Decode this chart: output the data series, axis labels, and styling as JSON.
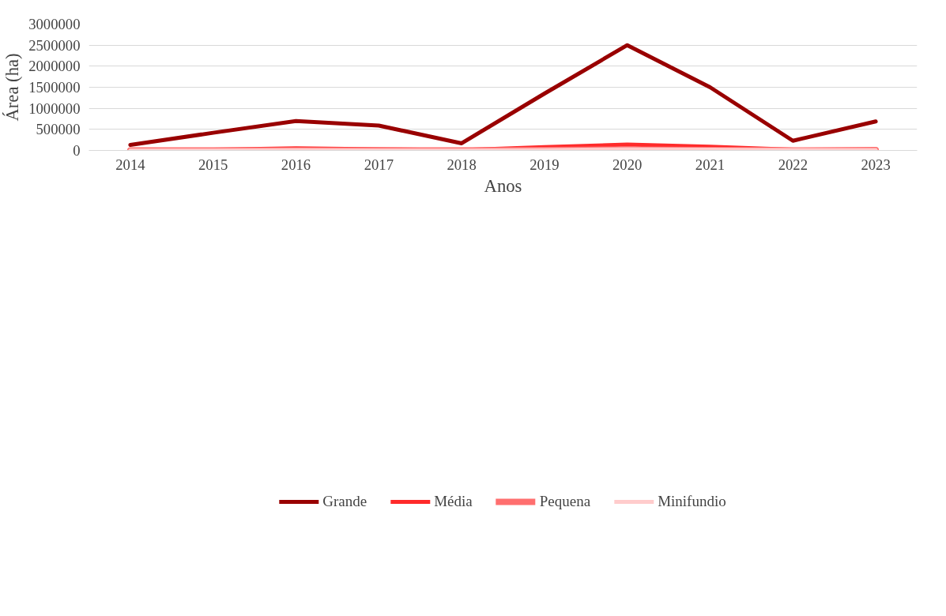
{
  "chart_data": {
    "type": "line",
    "xlabel": "Anos",
    "ylabel": "Área (ha)",
    "categories": [
      "2014",
      "2015",
      "2016",
      "2017",
      "2018",
      "2019",
      "2020",
      "2021",
      "2022",
      "2023"
    ],
    "series": [
      {
        "name": "Grande",
        "color": "#990000",
        "values": [
          130000,
          420000,
          700000,
          590000,
          170000,
          1350000,
          2500000,
          1500000,
          230000,
          690000
        ]
      },
      {
        "name": "Média",
        "color": "#ff2a2a",
        "values": [
          10000,
          20000,
          50000,
          30000,
          10000,
          80000,
          140000,
          90000,
          20000,
          20000
        ]
      },
      {
        "name": "Pequena",
        "color": "#ff6f6f",
        "values": [
          0,
          0,
          0,
          0,
          0,
          10000,
          20000,
          10000,
          0,
          10000
        ]
      },
      {
        "name": "Minifundio",
        "color": "#ffcccc",
        "values": [
          0,
          0,
          10000,
          0,
          0,
          10000,
          30000,
          20000,
          10000,
          10000
        ]
      }
    ],
    "ylim": [
      0,
      3000000
    ],
    "yticks": [
      0,
      500000,
      1000000,
      1500000,
      2000000,
      2500000,
      3000000
    ],
    "grid": "y",
    "legend": "bottom",
    "marker": "none",
    "line_style": "solid"
  }
}
